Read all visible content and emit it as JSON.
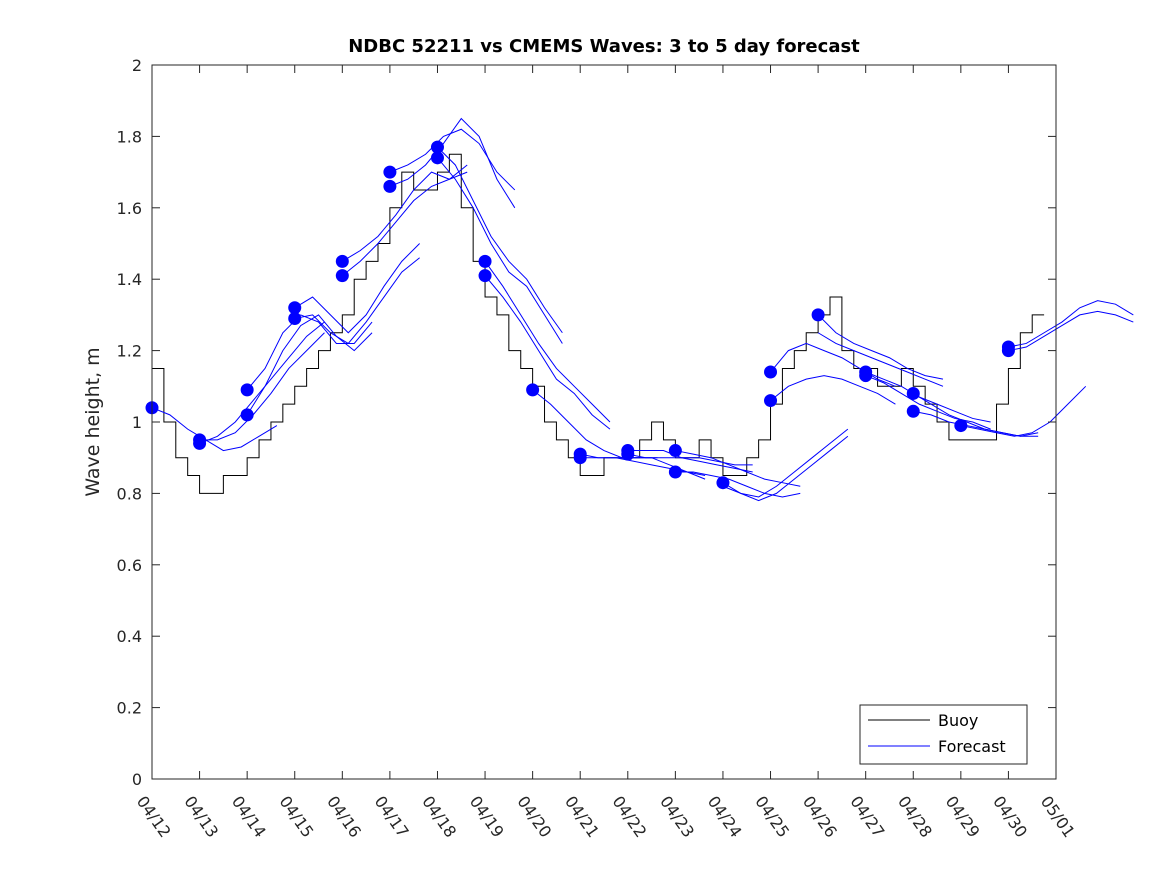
{
  "chart_data": {
    "type": "line",
    "title": "NDBC 52211 vs CMEMS Waves: 3 to 5 day forecast",
    "xlabel": "",
    "ylabel": "Wave height, m",
    "ylim": [
      0,
      2
    ],
    "yticks": [
      "0",
      "0.2",
      "0.4",
      "0.6",
      "0.8",
      "1",
      "1.2",
      "1.4",
      "1.6",
      "1.8",
      "2"
    ],
    "xlim": [
      "04/12",
      "05/01"
    ],
    "xticks": [
      "04/12",
      "04/13",
      "04/14",
      "04/15",
      "04/16",
      "04/17",
      "04/18",
      "04/19",
      "04/20",
      "04/21",
      "04/22",
      "04/23",
      "04/24",
      "04/25",
      "04/26",
      "04/27",
      "04/28",
      "04/29",
      "04/30",
      "05/01"
    ],
    "grid": false,
    "legend_placement": "bottom-right",
    "colors": {
      "buoy": "#000000",
      "forecast": "#0000ff"
    },
    "series": [
      {
        "name": "Buoy",
        "x": [
          "04/12",
          "04/12",
          "04/12",
          "04/12",
          "04/13",
          "04/13",
          "04/13",
          "04/13",
          "04/14",
          "04/14",
          "04/14",
          "04/14",
          "04/15",
          "04/15",
          "04/15",
          "04/15",
          "04/16",
          "04/16",
          "04/16",
          "04/16",
          "04/17",
          "04/17",
          "04/17",
          "04/17",
          "04/18",
          "04/18",
          "04/18",
          "04/18",
          "04/19",
          "04/19",
          "04/19",
          "04/19",
          "04/20",
          "04/20",
          "04/20",
          "04/20",
          "04/21",
          "04/21",
          "04/21",
          "04/21",
          "04/22",
          "04/22",
          "04/22",
          "04/22",
          "04/23",
          "04/23",
          "04/23",
          "04/23",
          "04/24",
          "04/24",
          "04/24",
          "04/24",
          "04/25",
          "04/25",
          "04/25",
          "04/25",
          "04/26",
          "04/26",
          "04/26",
          "04/26",
          "04/27",
          "04/27",
          "04/27",
          "04/27",
          "04/28",
          "04/28",
          "04/28",
          "04/28",
          "04/29",
          "04/29",
          "04/29",
          "04/29",
          "04/30",
          "04/30",
          "04/30",
          "04/30"
        ],
        "hours": [
          0,
          6,
          12,
          18,
          0,
          6,
          12,
          18,
          0,
          6,
          12,
          18,
          0,
          6,
          12,
          18,
          0,
          6,
          12,
          18,
          0,
          6,
          12,
          18,
          0,
          6,
          12,
          18,
          0,
          6,
          12,
          18,
          0,
          6,
          12,
          18,
          0,
          6,
          12,
          18,
          0,
          6,
          12,
          18,
          0,
          6,
          12,
          18,
          0,
          6,
          12,
          18,
          0,
          6,
          12,
          18,
          0,
          6,
          12,
          18,
          0,
          6,
          12,
          18,
          0,
          6,
          12,
          18,
          0,
          6,
          12,
          18,
          0,
          6,
          12,
          18
        ],
        "values": [
          1.15,
          1.0,
          0.9,
          0.85,
          0.8,
          0.8,
          0.85,
          0.85,
          0.9,
          0.95,
          1.0,
          1.05,
          1.1,
          1.15,
          1.2,
          1.25,
          1.3,
          1.4,
          1.45,
          1.5,
          1.6,
          1.7,
          1.65,
          1.65,
          1.7,
          1.75,
          1.6,
          1.45,
          1.35,
          1.3,
          1.2,
          1.15,
          1.1,
          1.0,
          0.95,
          0.9,
          0.85,
          0.85,
          0.9,
          0.9,
          0.9,
          0.95,
          1.0,
          0.95,
          0.9,
          0.9,
          0.95,
          0.9,
          0.85,
          0.85,
          0.9,
          0.95,
          1.05,
          1.15,
          1.2,
          1.25,
          1.3,
          1.35,
          1.2,
          1.15,
          1.15,
          1.1,
          1.1,
          1.15,
          1.1,
          1.05,
          1.0,
          0.95,
          0.95,
          0.95,
          0.95,
          1.05,
          1.15,
          1.25,
          1.3,
          1.3
        ]
      },
      {
        "name": "Forecast",
        "runs": [
          {
            "x0": 0.0,
            "values": [
              1.04,
              1.02,
              0.98,
              0.95,
              0.92,
              0.93,
              0.96,
              0.99
            ]
          },
          {
            "x0": 1.0,
            "values": [
              0.94,
              0.96,
              1.0,
              1.06,
              1.12,
              1.18,
              1.24,
              1.28
            ]
          },
          {
            "x0": 1.0,
            "values": [
              0.95,
              0.95,
              0.97,
              1.02,
              1.08,
              1.15,
              1.2,
              1.25
            ]
          },
          {
            "x0": 2.0,
            "values": [
              1.02,
              1.1,
              1.2,
              1.27,
              1.3,
              1.24,
              1.2,
              1.25
            ]
          },
          {
            "x0": 2.0,
            "values": [
              1.09,
              1.15,
              1.25,
              1.3,
              1.28,
              1.22,
              1.22,
              1.28
            ]
          },
          {
            "x0": 3.0,
            "values": [
              1.32,
              1.35,
              1.3,
              1.25,
              1.3,
              1.38,
              1.45,
              1.5
            ]
          },
          {
            "x0": 3.0,
            "values": [
              1.29,
              1.3,
              1.25,
              1.22,
              1.28,
              1.35,
              1.42,
              1.46
            ]
          },
          {
            "x0": 4.0,
            "values": [
              1.45,
              1.48,
              1.52,
              1.58,
              1.65,
              1.7,
              1.68,
              1.72
            ]
          },
          {
            "x0": 4.0,
            "values": [
              1.41,
              1.45,
              1.5,
              1.56,
              1.62,
              1.66,
              1.68,
              1.7
            ]
          },
          {
            "x0": 5.0,
            "values": [
              1.7,
              1.72,
              1.75,
              1.8,
              1.82,
              1.78,
              1.7,
              1.65
            ]
          },
          {
            "x0": 5.0,
            "values": [
              1.66,
              1.68,
              1.72,
              1.78,
              1.85,
              1.8,
              1.68,
              1.6
            ]
          },
          {
            "x0": 6.0,
            "values": [
              1.77,
              1.72,
              1.62,
              1.52,
              1.45,
              1.4,
              1.32,
              1.25
            ]
          },
          {
            "x0": 6.0,
            "values": [
              1.74,
              1.68,
              1.6,
              1.5,
              1.42,
              1.38,
              1.3,
              1.22
            ]
          },
          {
            "x0": 7.0,
            "values": [
              1.45,
              1.38,
              1.3,
              1.22,
              1.15,
              1.1,
              1.05,
              1.0
            ]
          },
          {
            "x0": 7.0,
            "values": [
              1.41,
              1.35,
              1.28,
              1.2,
              1.12,
              1.08,
              1.02,
              0.98
            ]
          },
          {
            "x0": 8.0,
            "values": [
              1.09,
              1.05,
              1.0,
              0.95,
              0.92,
              0.9,
              0.9,
              0.9
            ]
          },
          {
            "x0": 9.0,
            "values": [
              0.91,
              0.9,
              0.9,
              0.9,
              0.9,
              0.88,
              0.86,
              0.84
            ]
          },
          {
            "x0": 9.0,
            "values": [
              0.9,
              0.9,
              0.9,
              0.89,
              0.88,
              0.87,
              0.86,
              0.85
            ]
          },
          {
            "x0": 10.0,
            "values": [
              0.92,
              0.92,
              0.92,
              0.9,
              0.9,
              0.89,
              0.88,
              0.88
            ]
          },
          {
            "x0": 10.0,
            "values": [
              0.91,
              0.9,
              0.9,
              0.9,
              0.89,
              0.88,
              0.87,
              0.86
            ]
          },
          {
            "x0": 11.0,
            "values": [
              0.92,
              0.91,
              0.9,
              0.88,
              0.86,
              0.84,
              0.83,
              0.82
            ]
          },
          {
            "x0": 11.0,
            "values": [
              0.86,
              0.86,
              0.85,
              0.84,
              0.82,
              0.8,
              0.79,
              0.8
            ]
          },
          {
            "x0": 12.0,
            "values": [
              0.83,
              0.8,
              0.78,
              0.8,
              0.84,
              0.88,
              0.92,
              0.96
            ]
          },
          {
            "x0": 12.0,
            "values": [
              0.82,
              0.8,
              0.79,
              0.82,
              0.86,
              0.9,
              0.94,
              0.98
            ]
          },
          {
            "x0": 13.0,
            "values": [
              1.14,
              1.2,
              1.22,
              1.2,
              1.18,
              1.15,
              1.12,
              1.1
            ]
          },
          {
            "x0": 13.0,
            "values": [
              1.06,
              1.1,
              1.12,
              1.13,
              1.12,
              1.1,
              1.08,
              1.05
            ]
          },
          {
            "x0": 14.0,
            "values": [
              1.3,
              1.25,
              1.22,
              1.2,
              1.18,
              1.15,
              1.13,
              1.12
            ]
          },
          {
            "x0": 14.0,
            "values": [
              1.25,
              1.22,
              1.2,
              1.18,
              1.16,
              1.14,
              1.12,
              1.1
            ]
          },
          {
            "x0": 15.0,
            "values": [
              1.14,
              1.12,
              1.1,
              1.07,
              1.05,
              1.03,
              1.01,
              1.0
            ]
          },
          {
            "x0": 15.0,
            "values": [
              1.13,
              1.11,
              1.08,
              1.05,
              1.03,
              1.01,
              1.0,
              0.98
            ]
          },
          {
            "x0": 16.0,
            "values": [
              1.08,
              1.05,
              1.02,
              1.0,
              0.98,
              0.97,
              0.96,
              0.97
            ]
          },
          {
            "x0": 16.0,
            "values": [
              1.03,
              1.02,
              1.0,
              0.99,
              0.98,
              0.97,
              0.96,
              0.96
            ]
          },
          {
            "x0": 17.0,
            "values": [
              0.99,
              0.98,
              0.97,
              0.96,
              0.97,
              1.0,
              1.05,
              1.1
            ]
          },
          {
            "x0": 18.0,
            "values": [
              1.21,
              1.22,
              1.25,
              1.28,
              1.32,
              1.34,
              1.33,
              1.3
            ]
          },
          {
            "x0": 18.0,
            "values": [
              1.2,
              1.21,
              1.24,
              1.27,
              1.3,
              1.31,
              1.3,
              1.28
            ]
          }
        ],
        "markers": [
          {
            "x": 0.0,
            "y": 1.04
          },
          {
            "x": 1.0,
            "y": 0.95
          },
          {
            "x": 1.0,
            "y": 0.94
          },
          {
            "x": 2.0,
            "y": 1.09
          },
          {
            "x": 2.0,
            "y": 1.02
          },
          {
            "x": 3.0,
            "y": 1.32
          },
          {
            "x": 3.0,
            "y": 1.29
          },
          {
            "x": 4.0,
            "y": 1.45
          },
          {
            "x": 4.0,
            "y": 1.41
          },
          {
            "x": 5.0,
            "y": 1.7
          },
          {
            "x": 5.0,
            "y": 1.66
          },
          {
            "x": 6.0,
            "y": 1.77
          },
          {
            "x": 6.0,
            "y": 1.74
          },
          {
            "x": 7.0,
            "y": 1.45
          },
          {
            "x": 7.0,
            "y": 1.41
          },
          {
            "x": 8.0,
            "y": 1.09
          },
          {
            "x": 9.0,
            "y": 0.91
          },
          {
            "x": 9.0,
            "y": 0.9
          },
          {
            "x": 10.0,
            "y": 0.92
          },
          {
            "x": 10.0,
            "y": 0.91
          },
          {
            "x": 11.0,
            "y": 0.92
          },
          {
            "x": 11.0,
            "y": 0.86
          },
          {
            "x": 12.0,
            "y": 0.83
          },
          {
            "x": 13.0,
            "y": 1.14
          },
          {
            "x": 13.0,
            "y": 1.06
          },
          {
            "x": 14.0,
            "y": 1.3
          },
          {
            "x": 15.0,
            "y": 1.14
          },
          {
            "x": 15.0,
            "y": 1.13
          },
          {
            "x": 16.0,
            "y": 1.08
          },
          {
            "x": 16.0,
            "y": 1.03
          },
          {
            "x": 17.0,
            "y": 0.99
          },
          {
            "x": 18.0,
            "y": 1.21
          },
          {
            "x": 18.0,
            "y": 1.2
          }
        ]
      }
    ],
    "legend": [
      "Buoy",
      "Forecast"
    ]
  }
}
